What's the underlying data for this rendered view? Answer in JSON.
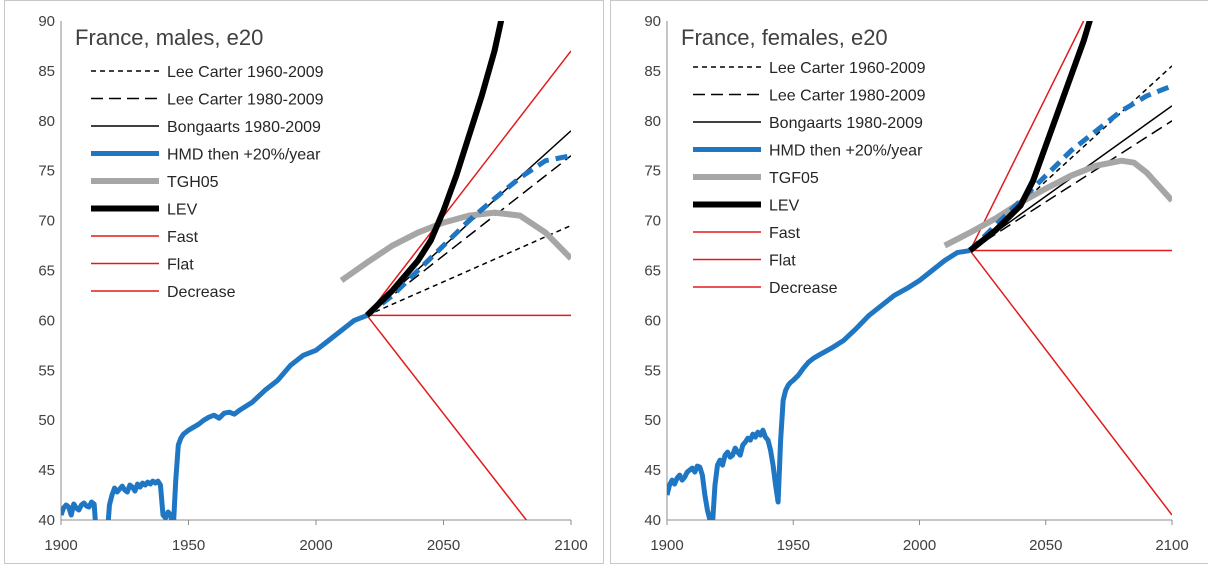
{
  "chart_data": [
    {
      "type": "line",
      "title": "France, males, e20",
      "xlim": [
        1900,
        2100
      ],
      "ylim": [
        40,
        90
      ],
      "xticks": [
        "1900",
        "1950",
        "2000",
        "2050",
        "2100"
      ],
      "yticks": [
        "40",
        "45",
        "50",
        "55",
        "60",
        "65",
        "70",
        "75",
        "80",
        "85",
        "90"
      ],
      "grid": false,
      "legend_position": "top-left",
      "series": [
        {
          "name": "Lee Carter 1960-2009",
          "color": "#000000",
          "style": "short-dash",
          "width": 1.5,
          "points": [
            [
              2020,
              60.5
            ],
            [
              2100,
              69.5
            ]
          ]
        },
        {
          "name": "Lee Carter 1980-2009",
          "color": "#000000",
          "style": "long-dash",
          "width": 1.5,
          "points": [
            [
              2020,
              60.5
            ],
            [
              2100,
              76.5
            ]
          ]
        },
        {
          "name": "Bongaarts 1980-2009",
          "color": "#000000",
          "style": "solid",
          "width": 1.5,
          "points": [
            [
              2020,
              60.5
            ],
            [
              2100,
              79
            ]
          ]
        },
        {
          "name": "HMD then +20%/year",
          "color": "#1f77c4",
          "style": "mixed",
          "width": 5,
          "points": [
            [
              1900,
              40.5
            ],
            [
              1901,
              41.2
            ],
            [
              1902,
              41.5
            ],
            [
              1903,
              41.3
            ],
            [
              1904,
              40.5
            ],
            [
              1905,
              41.6
            ],
            [
              1906,
              41.2
            ],
            [
              1907,
              41.0
            ],
            [
              1908,
              41.5
            ],
            [
              1909,
              41.7
            ],
            [
              1910,
              41.4
            ],
            [
              1911,
              41.3
            ],
            [
              1912,
              41.8
            ],
            [
              1913,
              41.6
            ],
            [
              1914,
              38.0
            ],
            [
              1918,
              38.0
            ],
            [
              1919,
              41.5
            ],
            [
              1920,
              42.5
            ],
            [
              1921,
              43.2
            ],
            [
              1922,
              42.8
            ],
            [
              1923,
              43.1
            ],
            [
              1924,
              43.4
            ],
            [
              1925,
              43.0
            ],
            [
              1926,
              42.8
            ],
            [
              1927,
              43.5
            ],
            [
              1928,
              43.3
            ],
            [
              1929,
              42.9
            ],
            [
              1930,
              43.6
            ],
            [
              1931,
              43.3
            ],
            [
              1932,
              43.7
            ],
            [
              1933,
              43.5
            ],
            [
              1934,
              43.8
            ],
            [
              1935,
              43.6
            ],
            [
              1936,
              43.9
            ],
            [
              1937,
              43.7
            ],
            [
              1938,
              43.9
            ],
            [
              1939,
              43.5
            ],
            [
              1940,
              40.5
            ],
            [
              1941,
              40.2
            ],
            [
              1942,
              40.8
            ],
            [
              1943,
              40.5
            ],
            [
              1944,
              39.0
            ],
            [
              1945,
              44.0
            ],
            [
              1946,
              47.5
            ],
            [
              1947,
              48.2
            ],
            [
              1948,
              48.6
            ],
            [
              1949,
              48.8
            ],
            [
              1950,
              49.0
            ],
            [
              1952,
              49.3
            ],
            [
              1954,
              49.6
            ],
            [
              1956,
              50.0
            ],
            [
              1958,
              50.3
            ],
            [
              1960,
              50.5
            ],
            [
              1962,
              50.2
            ],
            [
              1964,
              50.7
            ],
            [
              1966,
              50.8
            ],
            [
              1968,
              50.6
            ],
            [
              1970,
              51.0
            ],
            [
              1975,
              51.8
            ],
            [
              1980,
              53.0
            ],
            [
              1985,
              54.0
            ],
            [
              1990,
              55.5
            ],
            [
              1995,
              56.5
            ],
            [
              2000,
              57.0
            ],
            [
              2005,
              58.0
            ],
            [
              2010,
              59.0
            ],
            [
              2015,
              60.0
            ],
            [
              2020,
              60.5
            ],
            [
              2030,
              62.5
            ],
            [
              2040,
              65.0
            ],
            [
              2050,
              67.5
            ],
            [
              2060,
              70.0
            ],
            [
              2070,
              72.2
            ],
            [
              2080,
              74.3
            ],
            [
              2090,
              76.0
            ],
            [
              2100,
              76.5
            ]
          ]
        },
        {
          "name": "TGH05",
          "color": "#a6a6a6",
          "style": "solid",
          "width": 6,
          "points": [
            [
              2010,
              64.0
            ],
            [
              2020,
              65.8
            ],
            [
              2030,
              67.5
            ],
            [
              2040,
              68.8
            ],
            [
              2050,
              69.8
            ],
            [
              2060,
              70.5
            ],
            [
              2070,
              70.8
            ],
            [
              2080,
              70.5
            ],
            [
              2090,
              68.8
            ],
            [
              2100,
              66.2
            ]
          ]
        },
        {
          "name": "LEV",
          "color": "#000000",
          "style": "solid",
          "width": 6,
          "points": [
            [
              2020,
              60.5
            ],
            [
              2030,
              63.0
            ],
            [
              2040,
              66.0
            ],
            [
              2045,
              68.0
            ],
            [
              2050,
              71.0
            ],
            [
              2055,
              74.5
            ],
            [
              2060,
              78.5
            ],
            [
              2065,
              82.5
            ],
            [
              2070,
              87.0
            ],
            [
              2073,
              90.5
            ]
          ]
        },
        {
          "name": "Fast",
          "color": "#e31a1c",
          "style": "solid",
          "width": 1.5,
          "points": [
            [
              2020,
              60.5
            ],
            [
              2100,
              87.0
            ]
          ]
        },
        {
          "name": "Flat",
          "color": "#e31a1c",
          "style": "solid",
          "width": 1.5,
          "points": [
            [
              2020,
              60.5
            ],
            [
              2100,
              60.5
            ]
          ]
        },
        {
          "name": "Decrease",
          "color": "#e31a1c",
          "style": "solid",
          "width": 1.5,
          "points": [
            [
              2020,
              60.5
            ],
            [
              2084,
              39.5
            ]
          ]
        }
      ]
    },
    {
      "type": "line",
      "title": "France, females, e20",
      "xlim": [
        1900,
        2100
      ],
      "ylim": [
        40,
        90
      ],
      "xticks": [
        "1900",
        "1950",
        "2000",
        "2050",
        "2100"
      ],
      "yticks": [
        "40",
        "45",
        "50",
        "55",
        "60",
        "65",
        "70",
        "75",
        "80",
        "85",
        "90"
      ],
      "grid": false,
      "legend_position": "top-left",
      "series": [
        {
          "name": "Lee Carter 1960-2009",
          "color": "#000000",
          "style": "short-dash",
          "width": 1.5,
          "points": [
            [
              2020,
              67.0
            ],
            [
              2100,
              85.5
            ]
          ]
        },
        {
          "name": "Lee Carter 1980-2009",
          "color": "#000000",
          "style": "long-dash",
          "width": 1.5,
          "points": [
            [
              2020,
              67.0
            ],
            [
              2100,
              80.0
            ]
          ]
        },
        {
          "name": "Bongaarts 1980-2009",
          "color": "#000000",
          "style": "solid",
          "width": 1.5,
          "points": [
            [
              2020,
              67.0
            ],
            [
              2100,
              81.5
            ]
          ]
        },
        {
          "name": "HMD then +20%/year",
          "color": "#1f77c4",
          "style": "mixed",
          "width": 5,
          "points": [
            [
              1900,
              42.5
            ],
            [
              1901,
              43.5
            ],
            [
              1902,
              44.0
            ],
            [
              1903,
              43.6
            ],
            [
              1904,
              44.2
            ],
            [
              1905,
              44.5
            ],
            [
              1906,
              44.0
            ],
            [
              1907,
              44.3
            ],
            [
              1908,
              44.8
            ],
            [
              1909,
              45.0
            ],
            [
              1910,
              45.2
            ],
            [
              1911,
              44.8
            ],
            [
              1912,
              45.4
            ],
            [
              1913,
              45.3
            ],
            [
              1914,
              44.5
            ],
            [
              1915,
              42.5
            ],
            [
              1916,
              41.0
            ],
            [
              1917,
              40.0
            ],
            [
              1918,
              39.5
            ],
            [
              1919,
              43.5
            ],
            [
              1920,
              45.5
            ],
            [
              1921,
              46.0
            ],
            [
              1922,
              45.5
            ],
            [
              1923,
              46.5
            ],
            [
              1924,
              46.8
            ],
            [
              1925,
              46.3
            ],
            [
              1926,
              46.5
            ],
            [
              1927,
              47.2
            ],
            [
              1928,
              46.8
            ],
            [
              1929,
              46.5
            ],
            [
              1930,
              47.5
            ],
            [
              1931,
              47.8
            ],
            [
              1932,
              48.2
            ],
            [
              1933,
              48.0
            ],
            [
              1934,
              48.6
            ],
            [
              1935,
              48.3
            ],
            [
              1936,
              48.8
            ],
            [
              1937,
              48.5
            ],
            [
              1938,
              49.0
            ],
            [
              1939,
              48.3
            ],
            [
              1940,
              48.0
            ],
            [
              1941,
              47.0
            ],
            [
              1942,
              45.5
            ],
            [
              1943,
              43.5
            ],
            [
              1944,
              41.8
            ],
            [
              1945,
              48.0
            ],
            [
              1946,
              52.0
            ],
            [
              1947,
              53.0
            ],
            [
              1948,
              53.5
            ],
            [
              1949,
              53.8
            ],
            [
              1950,
              54.0
            ],
            [
              1952,
              54.5
            ],
            [
              1954,
              55.2
            ],
            [
              1956,
              55.8
            ],
            [
              1958,
              56.2
            ],
            [
              1960,
              56.5
            ],
            [
              1965,
              57.2
            ],
            [
              1970,
              58.0
            ],
            [
              1975,
              59.2
            ],
            [
              1980,
              60.5
            ],
            [
              1985,
              61.5
            ],
            [
              1990,
              62.5
            ],
            [
              1995,
              63.2
            ],
            [
              2000,
              64.0
            ],
            [
              2005,
              65.0
            ],
            [
              2010,
              66.0
            ],
            [
              2015,
              66.8
            ],
            [
              2020,
              67.0
            ],
            [
              2030,
              69.5
            ],
            [
              2040,
              72.0
            ],
            [
              2050,
              74.5
            ],
            [
              2060,
              77.0
            ],
            [
              2070,
              79.0
            ],
            [
              2080,
              81.0
            ],
            [
              2090,
              82.5
            ],
            [
              2100,
              83.5
            ]
          ]
        },
        {
          "name": "TGF05",
          "color": "#a6a6a6",
          "style": "solid",
          "width": 6,
          "points": [
            [
              2010,
              67.5
            ],
            [
              2020,
              68.8
            ],
            [
              2030,
              70.2
            ],
            [
              2040,
              71.8
            ],
            [
              2050,
              73.2
            ],
            [
              2060,
              74.5
            ],
            [
              2070,
              75.5
            ],
            [
              2080,
              76.0
            ],
            [
              2085,
              75.8
            ],
            [
              2090,
              74.8
            ],
            [
              2100,
              72.0
            ]
          ]
        },
        {
          "name": "LEV",
          "color": "#000000",
          "style": "solid",
          "width": 6,
          "points": [
            [
              2020,
              67.0
            ],
            [
              2030,
              69.0
            ],
            [
              2040,
              71.5
            ],
            [
              2045,
              74.0
            ],
            [
              2050,
              77.5
            ],
            [
              2055,
              81.0
            ],
            [
              2060,
              84.5
            ],
            [
              2065,
              88.0
            ],
            [
              2068,
              90.5
            ]
          ]
        },
        {
          "name": "Fast",
          "color": "#e31a1c",
          "style": "solid",
          "width": 1.5,
          "points": [
            [
              2020,
              67.0
            ],
            [
              2065,
              90.0
            ]
          ]
        },
        {
          "name": "Flat",
          "color": "#e31a1c",
          "style": "solid",
          "width": 1.5,
          "points": [
            [
              2020,
              67.0
            ],
            [
              2100,
              67.0
            ]
          ]
        },
        {
          "name": "Decrease",
          "color": "#e31a1c",
          "style": "solid",
          "width": 1.5,
          "points": [
            [
              2020,
              67.0
            ],
            [
              2100,
              40.5
            ]
          ]
        }
      ]
    }
  ]
}
